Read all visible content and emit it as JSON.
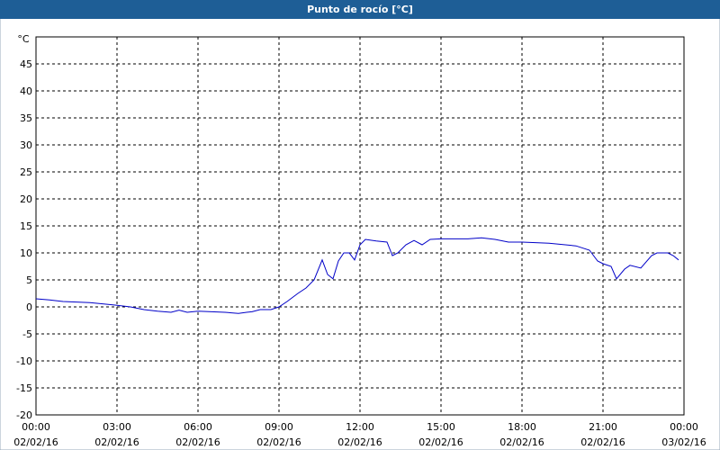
{
  "chart_data": {
    "type": "line",
    "title": "Punto de rocío [°C]",
    "y_unit": "°C",
    "x": [
      0,
      0.5,
      1,
      2,
      3,
      3.5,
      4,
      4.5,
      5,
      5.3,
      5.6,
      6,
      6.5,
      7,
      7.5,
      7.8,
      8,
      8.3,
      8.7,
      9,
      9.3,
      9.7,
      10,
      10.3,
      10.6,
      10.8,
      11,
      11.2,
      11.4,
      11.6,
      11.8,
      12,
      12.2,
      12.6,
      13,
      13.2,
      13.4,
      13.7,
      14,
      14.3,
      14.6,
      15,
      16,
      16.5,
      17,
      17.5,
      18,
      19,
      20,
      20.5,
      20.8,
      21,
      21.3,
      21.5,
      21.8,
      22,
      22.4,
      22.8,
      23,
      23.4,
      23.6,
      23.8
    ],
    "series": [
      {
        "color": "#0000c8",
        "values": [
          1.5,
          1.3,
          1.0,
          0.8,
          0.3,
          0.0,
          -0.5,
          -0.8,
          -1.0,
          -0.6,
          -1.0,
          -0.8,
          -0.9,
          -1.0,
          -1.2,
          -1.0,
          -0.9,
          -0.5,
          -0.5,
          0,
          1.0,
          2.5,
          3.5,
          5,
          8.7,
          6,
          5.2,
          8.5,
          10,
          10,
          8.7,
          11.5,
          12.5,
          12.2,
          12,
          9.5,
          10,
          11.5,
          12.3,
          11.5,
          12.5,
          12.6,
          12.6,
          12.8,
          12.5,
          12.0,
          12,
          11.8,
          11.3,
          10.5,
          8.5,
          8,
          7.5,
          5.2,
          7,
          7.7,
          7.2,
          9.5,
          10,
          10,
          9.5,
          8.7
        ]
      }
    ],
    "xlim": [
      0,
      24
    ],
    "xticks": [
      {
        "value": 0,
        "label": "00:00\n02/02/16"
      },
      {
        "value": 3,
        "label": "03:00\n02/02/16"
      },
      {
        "value": 6,
        "label": "06:00\n02/02/16"
      },
      {
        "value": 9,
        "label": "09:00\n02/02/16"
      },
      {
        "value": 12,
        "label": "12:00\n02/02/16"
      },
      {
        "value": 15,
        "label": "15:00\n02/02/16"
      },
      {
        "value": 18,
        "label": "18:00\n02/02/16"
      },
      {
        "value": 21,
        "label": "21:00\n02/02/16"
      },
      {
        "value": 24,
        "label": "00:00\n03/02/16"
      }
    ],
    "ylim": [
      -20,
      50
    ],
    "yticks": [
      -20,
      -15,
      -10,
      -5,
      0,
      5,
      10,
      15,
      20,
      25,
      30,
      35,
      40,
      45
    ],
    "grid": true
  }
}
